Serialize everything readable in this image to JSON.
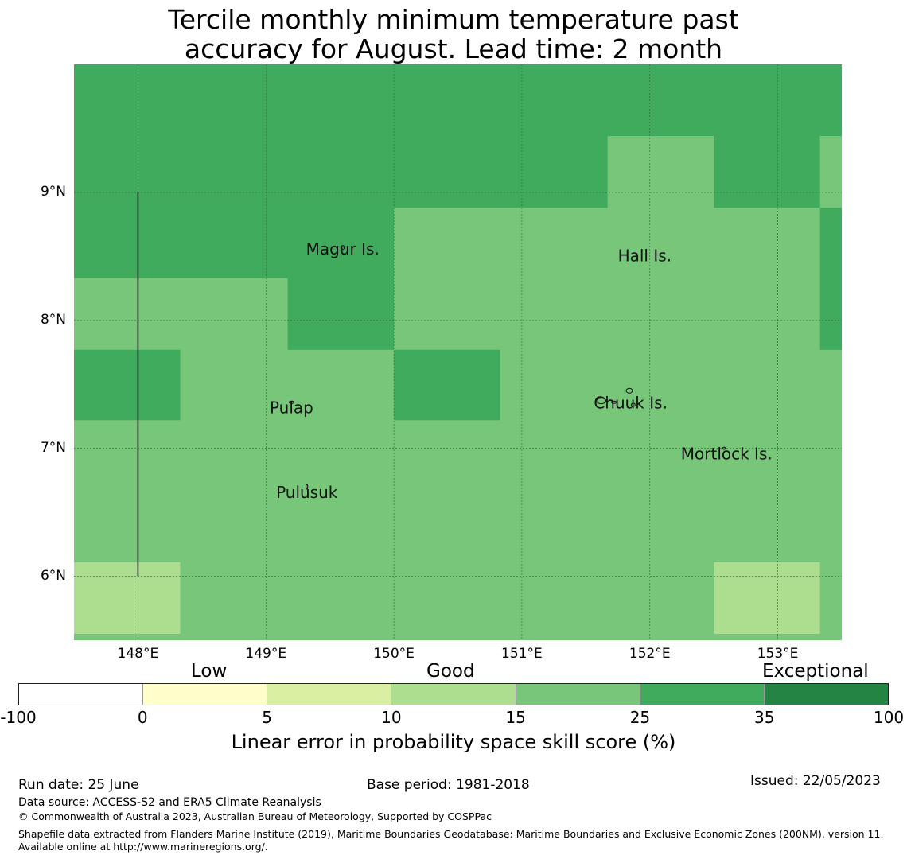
{
  "title": {
    "line1": "Tercile monthly minimum temperature past",
    "line2": "accuracy for August. Lead time: 2 month"
  },
  "map": {
    "lon_range": [
      147.5,
      153.5
    ],
    "lat_range": [
      5.5,
      10.0
    ],
    "lat_ticks": [
      {
        "value": 9,
        "label": "9°N"
      },
      {
        "value": 8,
        "label": "8°N"
      },
      {
        "value": 7,
        "label": "7°N"
      },
      {
        "value": 6,
        "label": "6°N"
      }
    ],
    "lon_ticks": [
      {
        "value": 148,
        "label": "148°E"
      },
      {
        "value": 149,
        "label": "149°E"
      },
      {
        "value": 150,
        "label": "150°E"
      },
      {
        "value": 151,
        "label": "151°E"
      },
      {
        "value": 152,
        "label": "152°E"
      },
      {
        "value": 153,
        "label": "153°E"
      }
    ],
    "places": [
      {
        "name": "Magur Is.",
        "lon": 149.6,
        "lat": 8.6
      },
      {
        "name": "Hall Is.",
        "lon": 151.96,
        "lat": 8.55
      },
      {
        "name": "Pulap",
        "lon": 149.2,
        "lat": 7.36
      },
      {
        "name": "Chuuk Is.",
        "lon": 151.85,
        "lat": 7.4
      },
      {
        "name": "Mortlock Is.",
        "lon": 152.6,
        "lat": 7.0
      },
      {
        "name": "Pulusuk",
        "lon": 149.32,
        "lat": 6.7
      }
    ],
    "boundary_line": {
      "lon": 148.0,
      "lat_from": 6.0,
      "lat_to": 9.0
    },
    "skill_grid": {
      "comment_units": "LEPS skill score bin index",
      "col_edges_lon": [
        147.5,
        148.33,
        149.17,
        150.0,
        150.83,
        151.67,
        152.5,
        153.33,
        153.5
      ],
      "row_edges_lat": [
        10.0,
        9.44,
        8.88,
        8.33,
        7.77,
        7.22,
        6.66,
        6.11,
        5.55,
        5.5
      ],
      "rows": [
        [
          "25-35",
          "25-35",
          "25-35",
          "25-35",
          "25-35",
          "25-35",
          "25-35",
          "25-35"
        ],
        [
          "25-35",
          "25-35",
          "25-35",
          "25-35",
          "25-35",
          "15-25",
          "25-35",
          "15-25"
        ],
        [
          "25-35",
          "25-35",
          "25-35",
          "15-25",
          "15-25",
          "15-25",
          "15-25",
          "25-35"
        ],
        [
          "15-25",
          "15-25",
          "25-35",
          "15-25",
          "15-25",
          "15-25",
          "15-25",
          "25-35"
        ],
        [
          "25-35",
          "15-25",
          "15-25",
          "25-35",
          "15-25",
          "15-25",
          "15-25",
          "15-25"
        ],
        [
          "15-25",
          "15-25",
          "15-25",
          "15-25",
          "15-25",
          "15-25",
          "15-25",
          "15-25"
        ],
        [
          "15-25",
          "15-25",
          "15-25",
          "15-25",
          "15-25",
          "15-25",
          "15-25",
          "15-25"
        ],
        [
          "10-15",
          "15-25",
          "15-25",
          "15-25",
          "15-25",
          "15-25",
          "10-15",
          "15-25"
        ],
        [
          "15-25",
          "15-25",
          "15-25",
          "15-25",
          "15-25",
          "15-25",
          "15-25",
          "15-25"
        ]
      ]
    }
  },
  "colorbar": {
    "categories": [
      {
        "label": "Low"
      },
      {
        "label": "Good"
      },
      {
        "label": "Exceptional"
      }
    ],
    "bins": [
      {
        "range": "-100-0",
        "color": "#ffffff"
      },
      {
        "range": "0-5",
        "color": "#ffffcc"
      },
      {
        "range": "5-10",
        "color": "#d9f0a3"
      },
      {
        "range": "10-15",
        "color": "#addd8e"
      },
      {
        "range": "15-25",
        "color": "#78c679"
      },
      {
        "range": "25-35",
        "color": "#41ab5d"
      },
      {
        "range": "35-100",
        "color": "#238443"
      }
    ],
    "ticks": [
      "-100",
      "0",
      "5",
      "10",
      "15",
      "25",
      "35",
      "100"
    ],
    "label": "Linear error in probability space skill score (%)"
  },
  "footer": {
    "run_date": "Run date: 25 June",
    "base_period": "Base period: 1981-2018",
    "issued": "Issued: 22/05/2023",
    "data_source": "Data source: ACCESS-S2 and ERA5 Climate Reanalysis",
    "copyright": "© Commonwealth of Australia 2023, Australian Bureau of Meteorology, Supported by COSPPac",
    "shapefile": "Shapefile data extracted from Flanders Marine Institute (2019), Maritime Boundaries Geodatabase: Maritime Boundaries and Exclusive Economic Zones (200NM), version 11. Available online at http://www.marineregions.org/."
  }
}
